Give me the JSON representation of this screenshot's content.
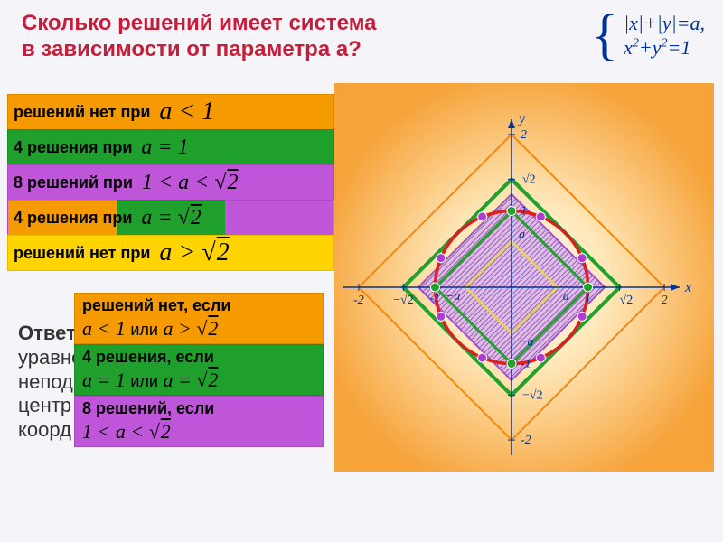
{
  "title_line1": "Сколько решений имеет система",
  "title_line2": "в зависимости от параметра a?",
  "title_color": "#c41e3a",
  "system": {
    "eq1": "|x|+|y|=a,",
    "eq2_lhs": "x",
    "eq2_sup1": "2",
    "eq2_mid": "+y",
    "eq2_sup2": "2",
    "eq2_rhs": "=1",
    "color": "#003399"
  },
  "rows": [
    {
      "label": "решений нет при",
      "formula": "a < 1",
      "bg": "orange"
    },
    {
      "label": "4 решения  при",
      "formula": "a = 1",
      "bg": "green"
    },
    {
      "label": "8 решений  при",
      "formula": "1 < a < √2",
      "bg": "purple"
    },
    {
      "label": "4 решения при",
      "formula": "a = √2",
      "bg": "grad3"
    },
    {
      "label": "решений нет при",
      "formula": "a > √2",
      "bg": "yellow"
    }
  ],
  "answer_label": "Ответ:",
  "answers": [
    {
      "label": "решений нет, если",
      "formula": "a < 1  или  a > √2",
      "bg": "orange"
    },
    {
      "label": "4 решения, если",
      "formula": "a = 1  или  a = √2",
      "bg": "green"
    },
    {
      "label": "8 решений, если",
      "formula": "1 < a < √2",
      "bg": "purple"
    }
  ],
  "behind_text": [
    "уравне",
    "непод",
    "центр",
    "коорд"
  ],
  "diagram": {
    "bg_glow_inner": "#ffffff",
    "bg_glow_outer": "#f6a33a",
    "axis_color": "#003399",
    "tick_color": "#003399",
    "axis_labels": {
      "x": "x",
      "y": "y"
    },
    "ticks": {
      "max": 2,
      "sqrt2_label": "√2",
      "neg_sqrt2_label": "−√2",
      "a_label": "a",
      "neg_a_label": "−a"
    },
    "outer_square_color": "#f08a12",
    "mid_square_color": "#20a22d",
    "mid_square_width": 4,
    "inner_square_fill": "#d7b7e8",
    "inner_square_hatch": "#8a3fb5",
    "inner_square_border": "#a052c8",
    "innermost_square_color": "#e8cf6a",
    "circle_color": "#d82222",
    "circle_width": 3.5,
    "circle_points_color": "#20a22d",
    "sqrt2_points_color": "#b03dd0",
    "a_value": 0.6,
    "range": 2.2
  }
}
